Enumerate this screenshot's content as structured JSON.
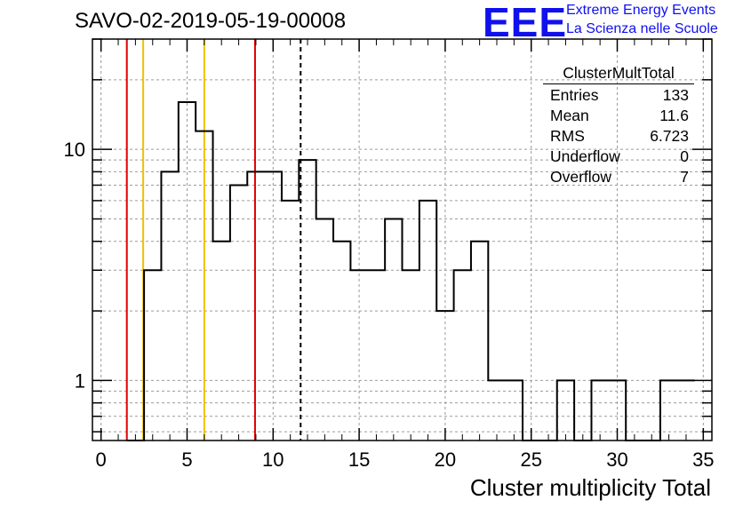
{
  "title": "SAVO-02-2019-05-19-00008",
  "logo": {
    "mark": "EEE",
    "line1": "Extreme Energy Events",
    "line2": "La Scienza nelle Scuole",
    "color": "#1010ee"
  },
  "stats_box": {
    "name": "ClusterMultTotal",
    "rows": [
      {
        "label": "Entries",
        "value": "133"
      },
      {
        "label": "Mean",
        "value": "11.6"
      },
      {
        "label": "RMS",
        "value": "6.723"
      },
      {
        "label": "Underflow",
        "value": "0"
      },
      {
        "label": "Overflow",
        "value": "7"
      }
    ]
  },
  "chart_data": {
    "type": "histogram",
    "xlabel": "Cluster multiplicity Total",
    "ylabel": "",
    "xlim": [
      -0.5,
      35.5
    ],
    "ylim": [
      0.55,
      30
    ],
    "y_scale": "log",
    "grid": true,
    "bin_width": 1,
    "bins": [
      {
        "x": 2,
        "count": 0
      },
      {
        "x": 3,
        "count": 3
      },
      {
        "x": 4,
        "count": 8
      },
      {
        "x": 5,
        "count": 16
      },
      {
        "x": 6,
        "count": 12
      },
      {
        "x": 7,
        "count": 4
      },
      {
        "x": 8,
        "count": 7
      },
      {
        "x": 9,
        "count": 8
      },
      {
        "x": 10,
        "count": 8
      },
      {
        "x": 11,
        "count": 6
      },
      {
        "x": 12,
        "count": 9
      },
      {
        "x": 13,
        "count": 5
      },
      {
        "x": 14,
        "count": 4
      },
      {
        "x": 15,
        "count": 3
      },
      {
        "x": 16,
        "count": 3
      },
      {
        "x": 17,
        "count": 5
      },
      {
        "x": 18,
        "count": 3
      },
      {
        "x": 19,
        "count": 6
      },
      {
        "x": 20,
        "count": 2
      },
      {
        "x": 21,
        "count": 3
      },
      {
        "x": 22,
        "count": 4
      },
      {
        "x": 23,
        "count": 1
      },
      {
        "x": 24,
        "count": 1
      },
      {
        "x": 25,
        "count": 0
      },
      {
        "x": 26,
        "count": 0
      },
      {
        "x": 27,
        "count": 1
      },
      {
        "x": 28,
        "count": 0
      },
      {
        "x": 29,
        "count": 1
      },
      {
        "x": 30,
        "count": 1
      },
      {
        "x": 31,
        "count": 0
      },
      {
        "x": 32,
        "count": 0
      },
      {
        "x": 33,
        "count": 1
      },
      {
        "x": 34,
        "count": 1
      }
    ],
    "x_ticks": [
      0,
      5,
      10,
      15,
      20,
      25,
      30,
      35
    ],
    "y_ticks": [
      1,
      10
    ],
    "vertical_lines": [
      {
        "x": 1.5,
        "color": "#e00000",
        "style": "solid"
      },
      {
        "x": 2.45,
        "color": "#f0c000",
        "style": "solid"
      },
      {
        "x": 6.0,
        "color": "#f0c000",
        "style": "solid"
      },
      {
        "x": 8.95,
        "color": "#e00000",
        "style": "solid"
      },
      {
        "x": 11.6,
        "color": "#000000",
        "style": "dashed"
      }
    ]
  }
}
